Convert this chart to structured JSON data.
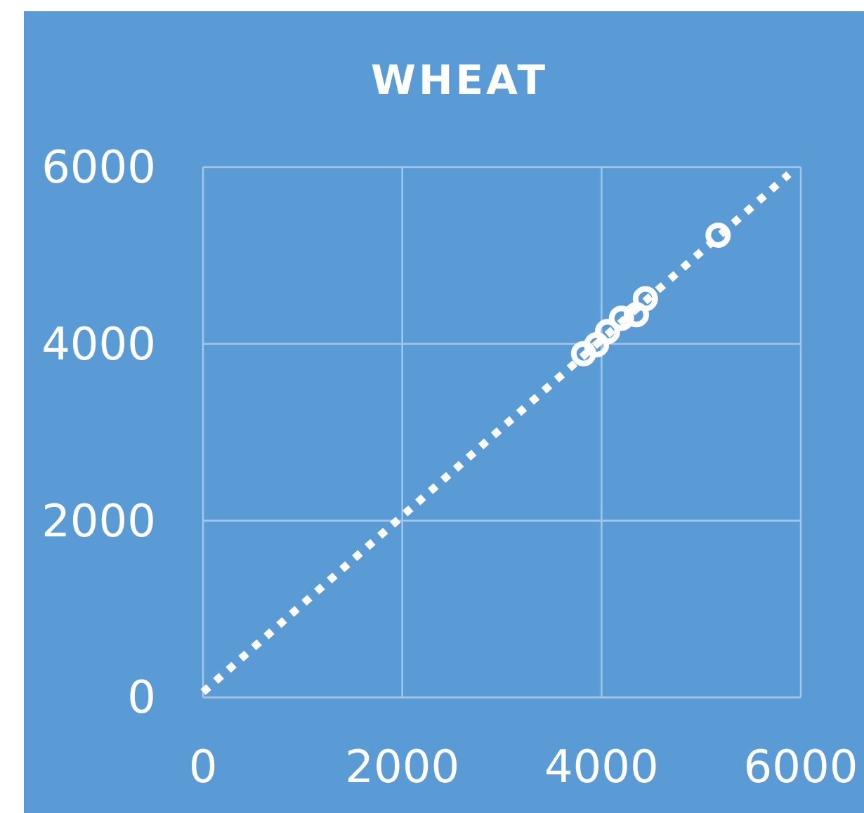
{
  "chart_data": {
    "type": "scatter",
    "title": "WHEAT",
    "xlim": [
      0,
      6000
    ],
    "ylim": [
      0,
      6000
    ],
    "xticks": [
      0,
      2000,
      4000,
      6000
    ],
    "yticks": [
      0,
      2000,
      4000,
      6000
    ],
    "grid": true,
    "series": [
      {
        "color": "#ffffff",
        "marker": "circle",
        "x": [
          3820,
          3950,
          4060,
          4200,
          4350,
          4440,
          5170
        ],
        "values": [
          3890,
          3990,
          4140,
          4290,
          4330,
          4510,
          5230
        ]
      },
      {
        "type": "line",
        "color": "#ffffff",
        "line_style": "dotted",
        "marker": "none",
        "x": [
          0,
          5880
        ],
        "values": [
          60,
          5920
        ]
      }
    ]
  }
}
